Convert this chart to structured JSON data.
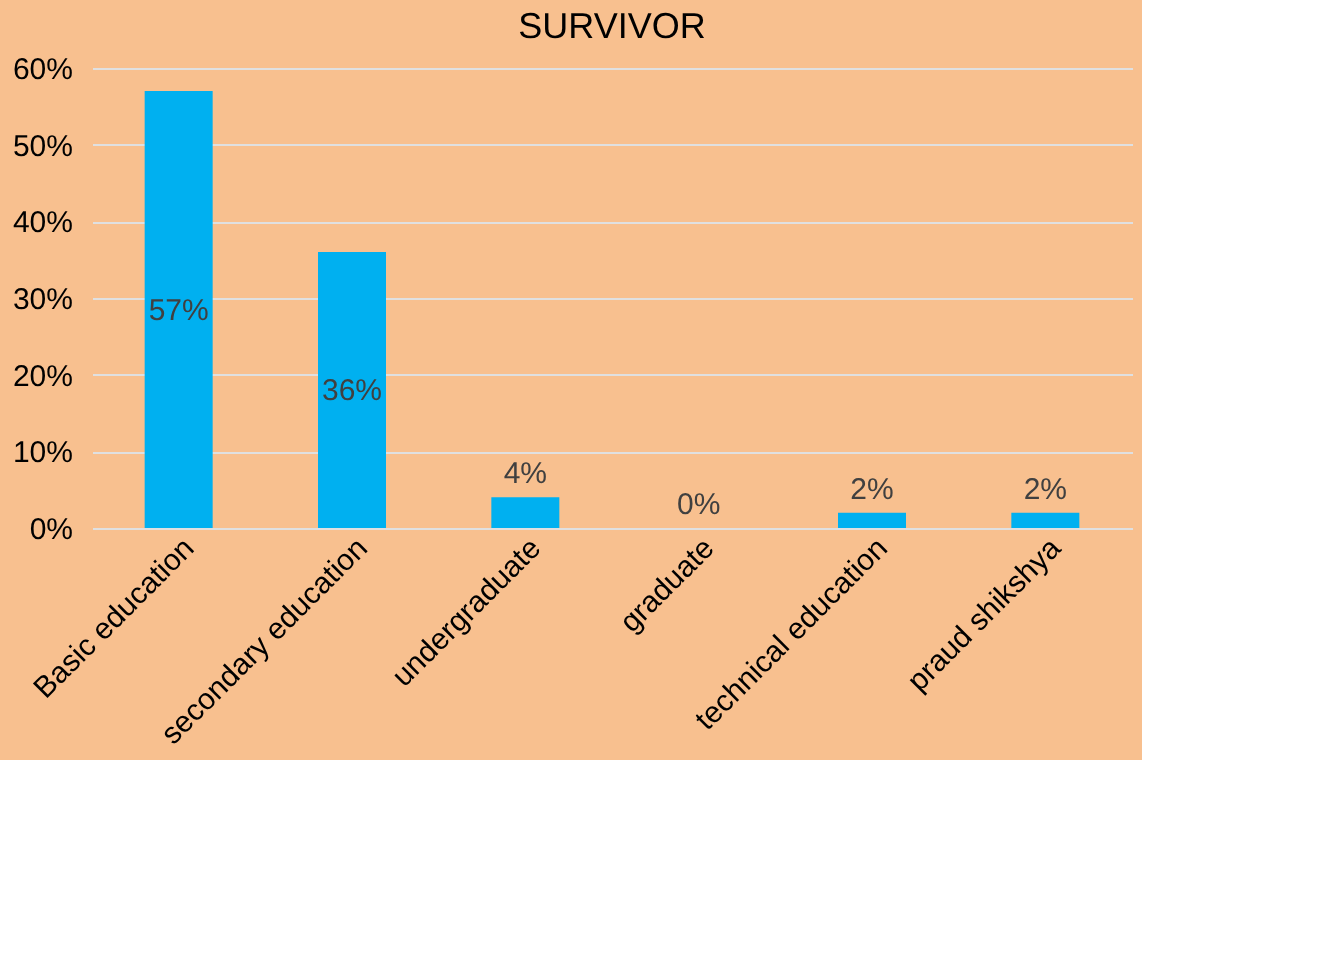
{
  "chart_data": {
    "type": "bar",
    "title": "SURVIVOR",
    "categories": [
      "Basic education",
      "secondary education",
      "undergraduate",
      "graduate",
      "technical education",
      "praud shikshya"
    ],
    "values": [
      57,
      36,
      4,
      0,
      2,
      2
    ],
    "value_labels": [
      "57%",
      "36%",
      "4%",
      "0%",
      "2%",
      "2%"
    ],
    "color": "#00b0f0",
    "ylim": [
      0,
      60
    ],
    "yticks": [
      {
        "value": 0,
        "label": "0%"
      },
      {
        "value": 10,
        "label": "10%"
      },
      {
        "value": 20,
        "label": "20%"
      },
      {
        "value": 30,
        "label": "30%"
      },
      {
        "value": 40,
        "label": "40%"
      },
      {
        "value": 50,
        "label": "50%"
      },
      {
        "value": 60,
        "label": "60%"
      }
    ],
    "grid": "y"
  }
}
